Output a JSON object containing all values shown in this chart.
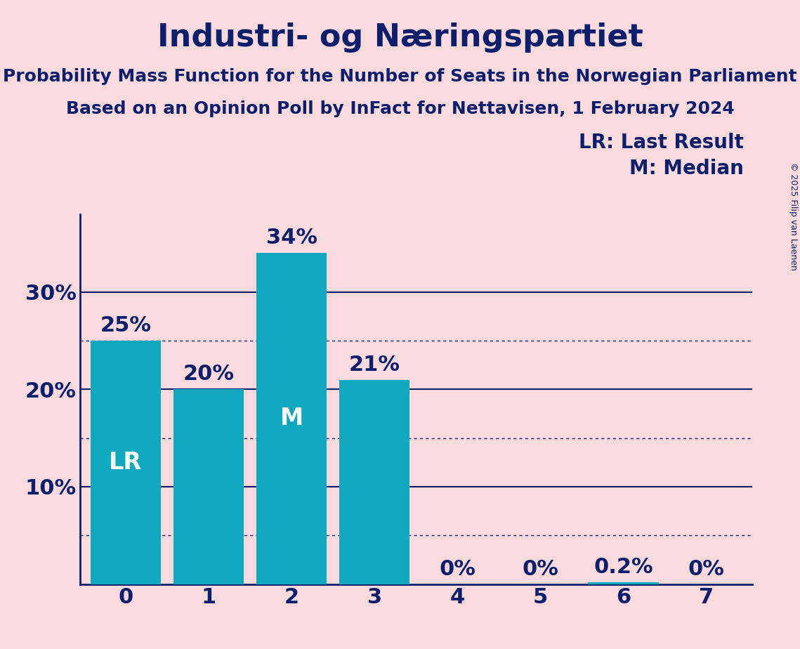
{
  "title": "Industri- og Næringspartiet",
  "subtitle1": "Probability Mass Function for the Number of Seats in the Norwegian Parliament",
  "subtitle2": "Based on an Opinion Poll by InFact for Nettavisen, 1 February 2024",
  "copyright": "© 2025 Filip van Laenen",
  "categories": [
    0,
    1,
    2,
    3,
    4,
    5,
    6,
    7
  ],
  "values": [
    25,
    20,
    34,
    21,
    0,
    0,
    0.2,
    0
  ],
  "bar_color": "#0fa8be",
  "background_color": "#fadadd",
  "text_color": "#0d1f6b",
  "bar_label_color_light": "#ffffff",
  "lr_bar_index": 0,
  "median_bar_index": 2,
  "lr_label": "LR",
  "median_label": "M",
  "legend_lr": "LR: Last Result",
  "legend_m": "M: Median",
  "yticks": [
    10,
    20,
    30
  ],
  "ylim": [
    0,
    38
  ],
  "dotted_line_values": [
    25,
    15,
    5
  ],
  "title_fontsize": 32,
  "subtitle_fontsize": 18,
  "tick_fontsize": 22,
  "bar_label_fontsize": 22,
  "inline_label_fontsize": 24,
  "legend_fontsize": 20,
  "copyright_fontsize": 9
}
